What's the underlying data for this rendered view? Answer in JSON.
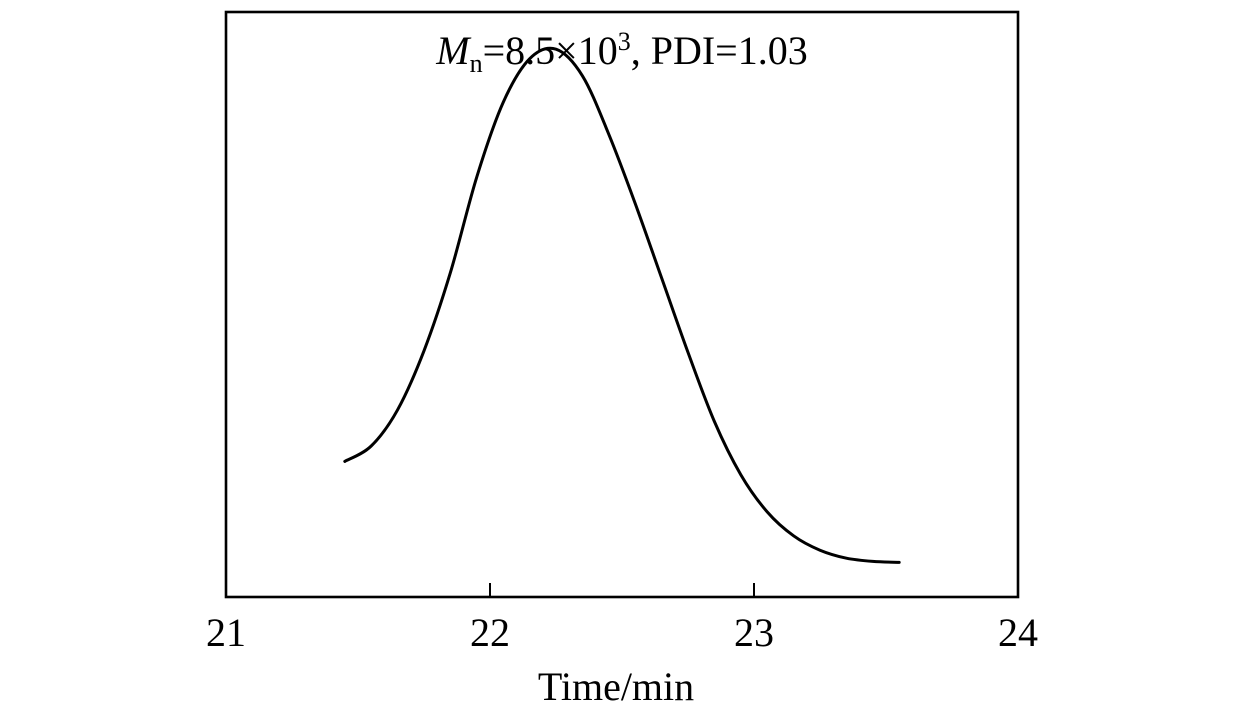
{
  "chart_data": {
    "type": "line",
    "xlabel": "Time/min",
    "ylabel": "",
    "xlim": [
      21,
      24
    ],
    "ylim": [
      0,
      1.1
    ],
    "x_ticks": [
      "21",
      "22",
      "23",
      "24"
    ],
    "y_ticks_shown": false,
    "grid": false,
    "annotation": {
      "symbol": "M",
      "subscript": "n",
      "value_text": "=8.5×10",
      "exponent": "3",
      "rest": ", PDI=1.03"
    },
    "series": [
      {
        "x": [
          21.45,
          21.55,
          21.65,
          21.75,
          21.85,
          21.95,
          22.05,
          22.15,
          22.25,
          22.35,
          22.45,
          22.55,
          22.65,
          22.75,
          22.85,
          22.95,
          23.05,
          23.15,
          23.25,
          23.35,
          23.45,
          23.55
        ],
        "y": [
          0.255,
          0.284,
          0.352,
          0.463,
          0.61,
          0.79,
          0.93,
          1.012,
          1.03,
          0.98,
          0.87,
          0.74,
          0.6,
          0.46,
          0.33,
          0.23,
          0.16,
          0.115,
          0.088,
          0.073,
          0.067,
          0.065
        ]
      }
    ]
  }
}
